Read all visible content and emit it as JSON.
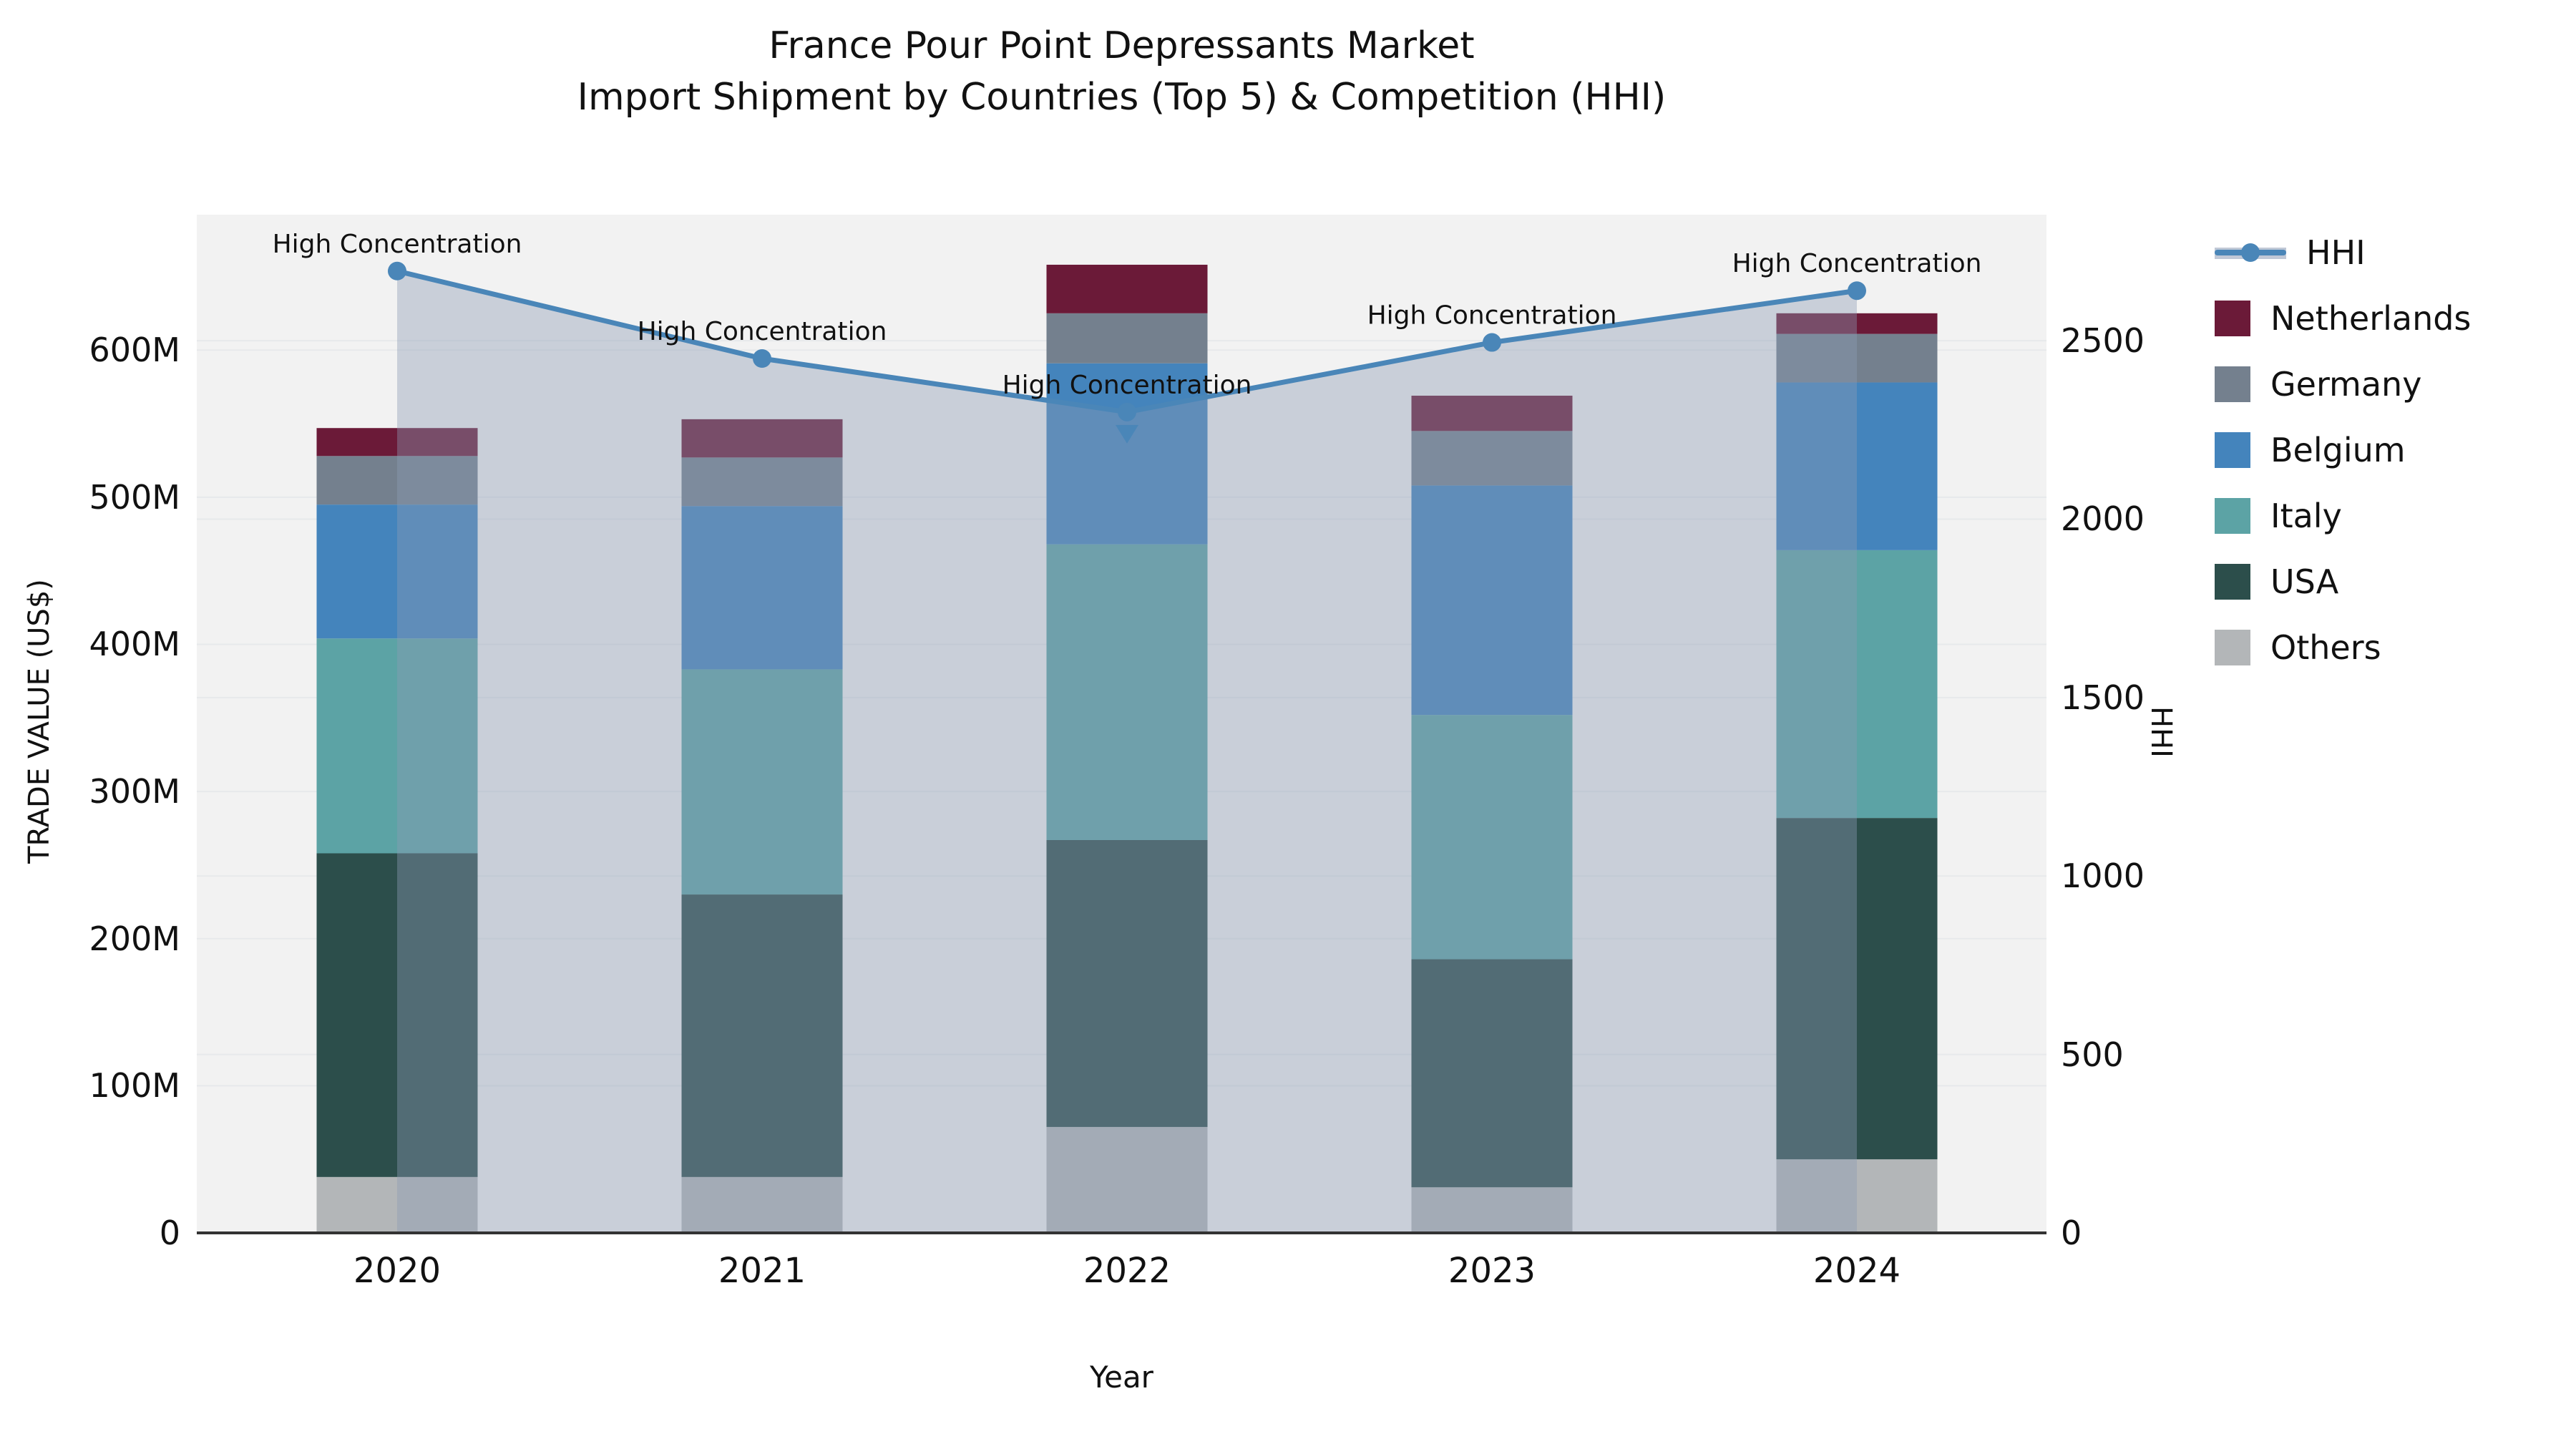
{
  "figure": {
    "background": "#ffffff"
  },
  "colors": {
    "plot_background": "#F2F2F2",
    "gridline": "#E7E9EB",
    "axis_line": "#333333",
    "text": "#111111"
  },
  "chart_data": {
    "type": "stacked-bar+line",
    "title": "France Pour Point Depressants Market",
    "subtitle": "Import Shipment by Countries (Top 5) & Competition (HHI)",
    "categories": [
      "2020",
      "2021",
      "2022",
      "2023",
      "2024"
    ],
    "bar_unit": "Million US$",
    "series": [
      {
        "name": "Others",
        "color": "#B3B6B8",
        "values": [
          38,
          38,
          72,
          31,
          50
        ]
      },
      {
        "name": "USA",
        "color": "#2C4E4B",
        "values": [
          220,
          192,
          195,
          155,
          232
        ]
      },
      {
        "name": "Italy",
        "color": "#5CA3A5",
        "values": [
          146,
          153,
          201,
          166,
          182
        ]
      },
      {
        "name": "Belgium",
        "color": "#4484BC",
        "values": [
          91,
          111,
          123,
          156,
          114
        ]
      },
      {
        "name": "Germany",
        "color": "#74808E",
        "values": [
          33,
          33,
          34,
          37,
          33
        ]
      },
      {
        "name": "Netherlands",
        "color": "#6B1A38",
        "values": [
          19,
          26,
          33,
          24,
          14
        ]
      }
    ],
    "bar_totals": [
      547,
      553,
      658,
      569,
      625
    ],
    "line_series": {
      "name": "HHI",
      "color": "#4A86B8",
      "area_color": "rgba(140,154,181,0.40)",
      "values": [
        2695,
        2450,
        2300,
        2495,
        2640
      ]
    },
    "annotations": [
      "High Concentration",
      "High Concentration",
      "High Concentration",
      "High Concentration",
      "High Concentration"
    ],
    "axes": {
      "left": {
        "label": "TRADE VALUE (US$)",
        "ticks": [
          "0",
          "100M",
          "200M",
          "300M",
          "400M",
          "500M",
          "600M"
        ],
        "tick_values": [
          0,
          100,
          200,
          300,
          400,
          500,
          600
        ],
        "max": 693
      },
      "right": {
        "label": "HHI",
        "ticks": [
          "0",
          "500",
          "1000",
          "1500",
          "2000",
          "2500"
        ],
        "tick_values": [
          0,
          500,
          1000,
          1500,
          2000,
          2500
        ],
        "max": 2857
      },
      "x": {
        "label": "Year"
      }
    },
    "grid": true,
    "legend_position": "right",
    "legend": [
      {
        "label": "HHI",
        "type": "line",
        "color": "#4A86B8"
      },
      {
        "label": "Netherlands",
        "type": "patch",
        "color": "#6B1A38"
      },
      {
        "label": "Germany",
        "type": "patch",
        "color": "#74808E"
      },
      {
        "label": "Belgium",
        "type": "patch",
        "color": "#4484BC"
      },
      {
        "label": "Italy",
        "type": "patch",
        "color": "#5CA3A5"
      },
      {
        "label": "USA",
        "type": "patch",
        "color": "#2C4E4B"
      },
      {
        "label": "Others",
        "type": "patch",
        "color": "#B3B6B8"
      }
    ]
  }
}
